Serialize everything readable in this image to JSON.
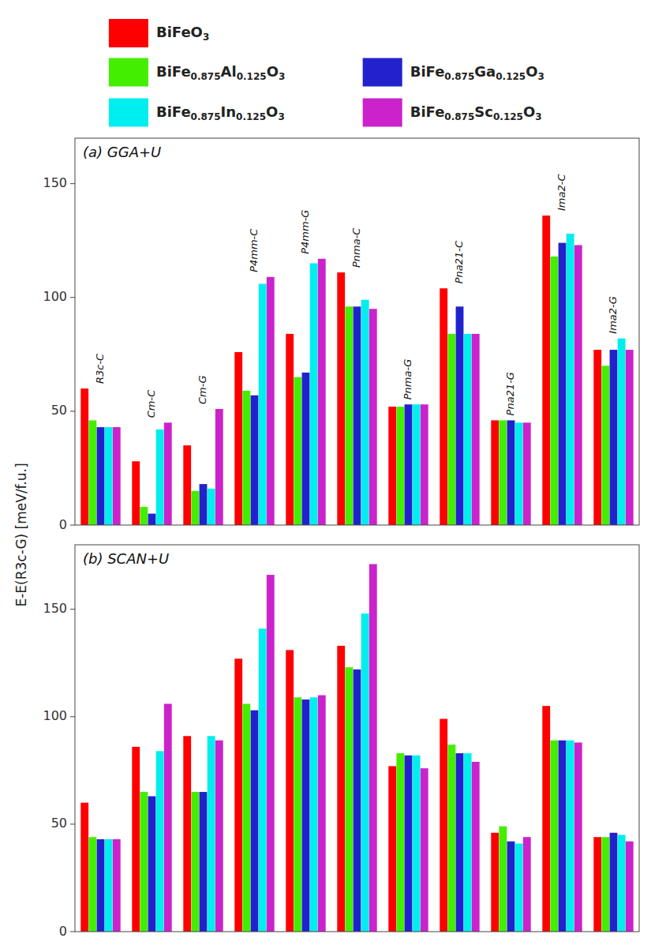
{
  "chart_data": [
    {
      "type": "bar",
      "title": "(a) GGA+U",
      "y_label": "E-E(R3c-G) [meV/f.u.]",
      "legend": "top",
      "categories": [
        "R3c-C",
        "Cm-C",
        "Cm-G",
        "P4mm-C",
        "P4mm-G",
        "Pnma-C",
        "Pnma-G",
        "Pna21-C",
        "Pna21-G",
        "Ima2-C",
        "Ima2-G"
      ],
      "series": [
        {
          "name": "BiFeO3",
          "color": "#ff0000",
          "values": [
            60,
            28,
            35,
            76,
            84,
            111,
            52,
            104,
            46,
            136,
            77
          ]
        },
        {
          "name": "BiFe0.875Al0.125O3",
          "color": "#44ee00",
          "values": [
            46,
            8,
            15,
            59,
            65,
            96,
            52,
            84,
            46,
            118,
            70
          ]
        },
        {
          "name": "BiFe0.875Ga0.125O3",
          "color": "#2222cc",
          "values": [
            43,
            5,
            18,
            57,
            67,
            96,
            53,
            96,
            46,
            124,
            77
          ]
        },
        {
          "name": "BiFe0.875In0.125O3",
          "color": "#00eeee",
          "values": [
            43,
            42,
            16,
            106,
            115,
            99,
            53,
            84,
            45,
            128,
            82
          ]
        },
        {
          "name": "BiFe0.875Sc0.125O3",
          "color": "#cc22cc",
          "values": [
            43,
            45,
            51,
            109,
            117,
            95,
            53,
            84,
            45,
            123,
            77
          ]
        }
      ],
      "ylim": [
        0,
        170
      ],
      "yticks": [
        0,
        50,
        100,
        150
      ],
      "grid": false
    },
    {
      "type": "bar",
      "title": "(b) SCAN+U",
      "tick_labels": "y",
      "categories": [
        null,
        null,
        null,
        null,
        null,
        null,
        null,
        null,
        null,
        null,
        null
      ],
      "series": [
        {
          "color": "#ff0000",
          "values": [
            60,
            86,
            91,
            127,
            131,
            133,
            77,
            99,
            46,
            105,
            44
          ]
        },
        {
          "color": "#44ee00",
          "values": [
            44,
            65,
            65,
            106,
            109,
            123,
            83,
            87,
            49,
            89,
            44
          ]
        },
        {
          "color": "#2222cc",
          "values": [
            43,
            63,
            65,
            103,
            108,
            122,
            82,
            83,
            42,
            89,
            46
          ]
        },
        {
          "color": "#00eeee",
          "values": [
            43,
            84,
            91,
            141,
            109,
            148,
            82,
            83,
            41,
            89,
            45
          ]
        },
        {
          "color": "#cc22cc",
          "values": [
            43,
            106,
            89,
            166,
            110,
            171,
            76,
            79,
            44,
            88,
            42
          ]
        }
      ],
      "ylim": [
        0,
        180
      ],
      "yticks": [
        0,
        50,
        100,
        150
      ],
      "grid": false
    }
  ]
}
